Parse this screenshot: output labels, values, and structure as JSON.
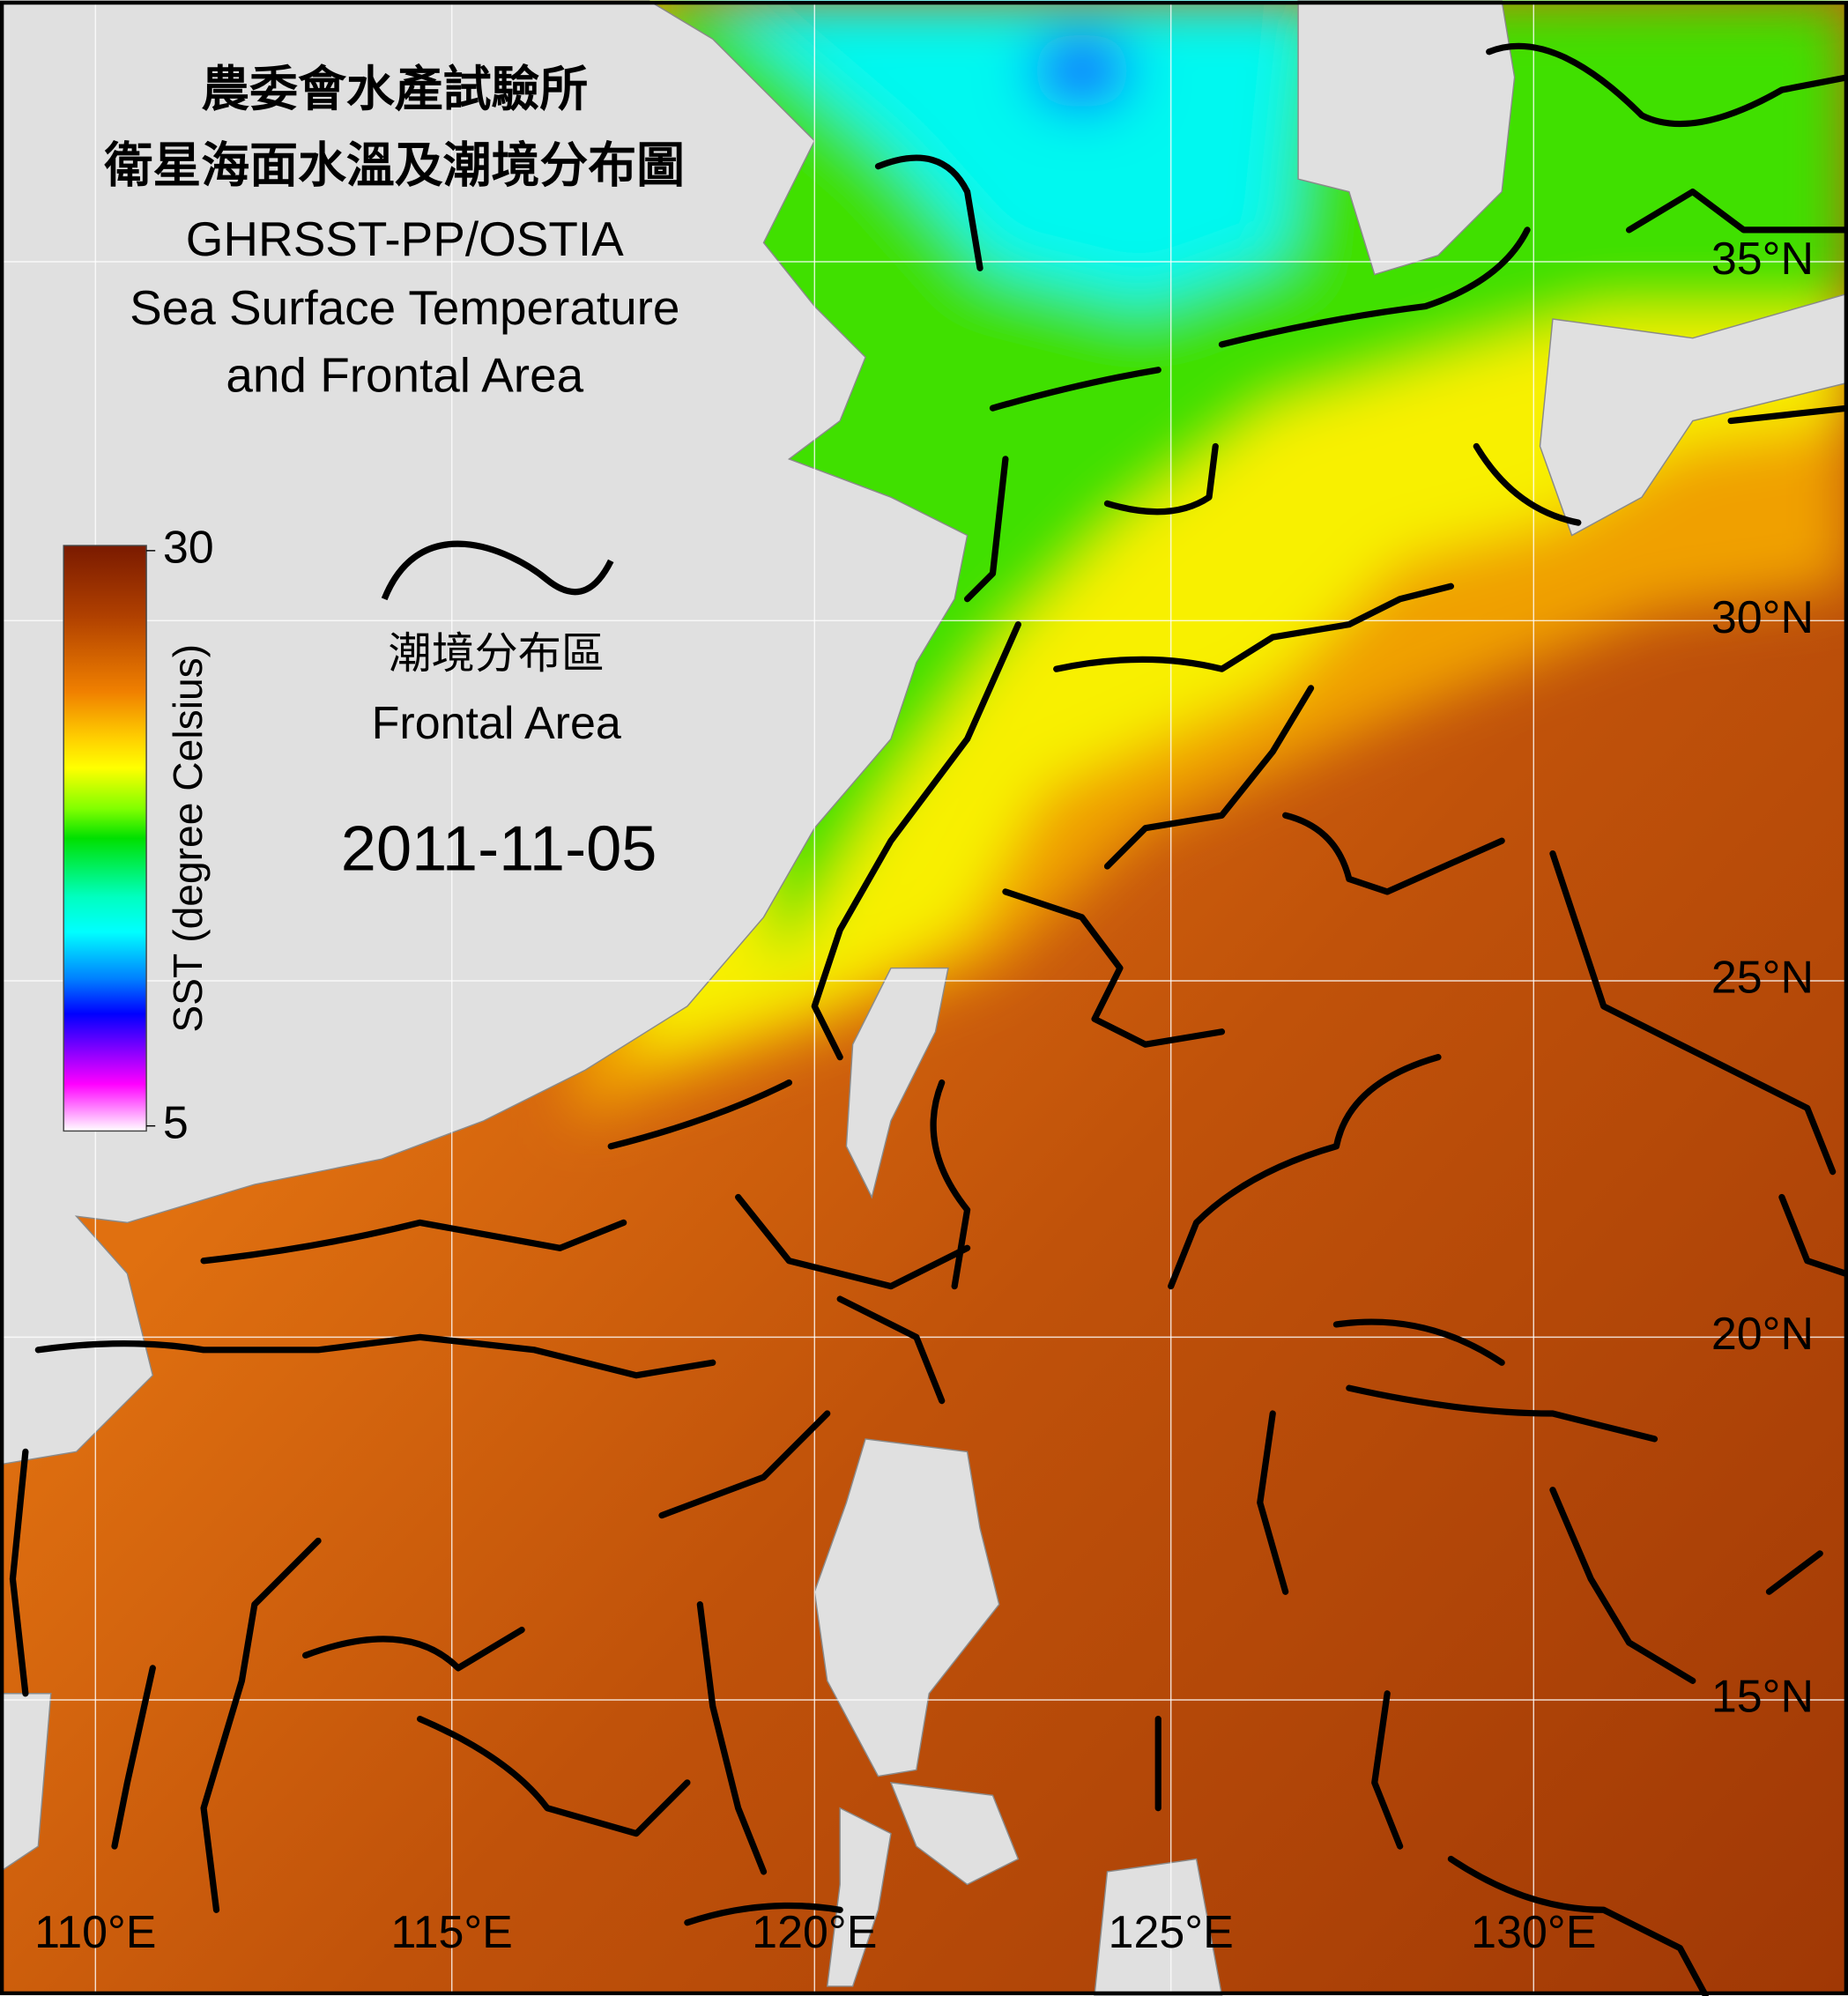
{
  "header": {
    "title_lines": [
      "農委會水產試驗所",
      "衛星海面水溫及潮境分布圖",
      "GHRSST-PP/OSTIA",
      "Sea Surface Temperature",
      "and Frontal Area"
    ]
  },
  "colorbar": {
    "label": "SST (degree Celsius)",
    "max": 30,
    "min": 5
  },
  "legend": {
    "label_zh": "潮境分布區",
    "label_en": "Frontal Area"
  },
  "date": "2011-11-05",
  "lat_labels": [
    "35°N",
    "30°N",
    "25°N",
    "20°N",
    "15°N"
  ],
  "lon_labels": [
    "110°E",
    "115°E",
    "120°E",
    "125°E",
    "130°E"
  ]
}
